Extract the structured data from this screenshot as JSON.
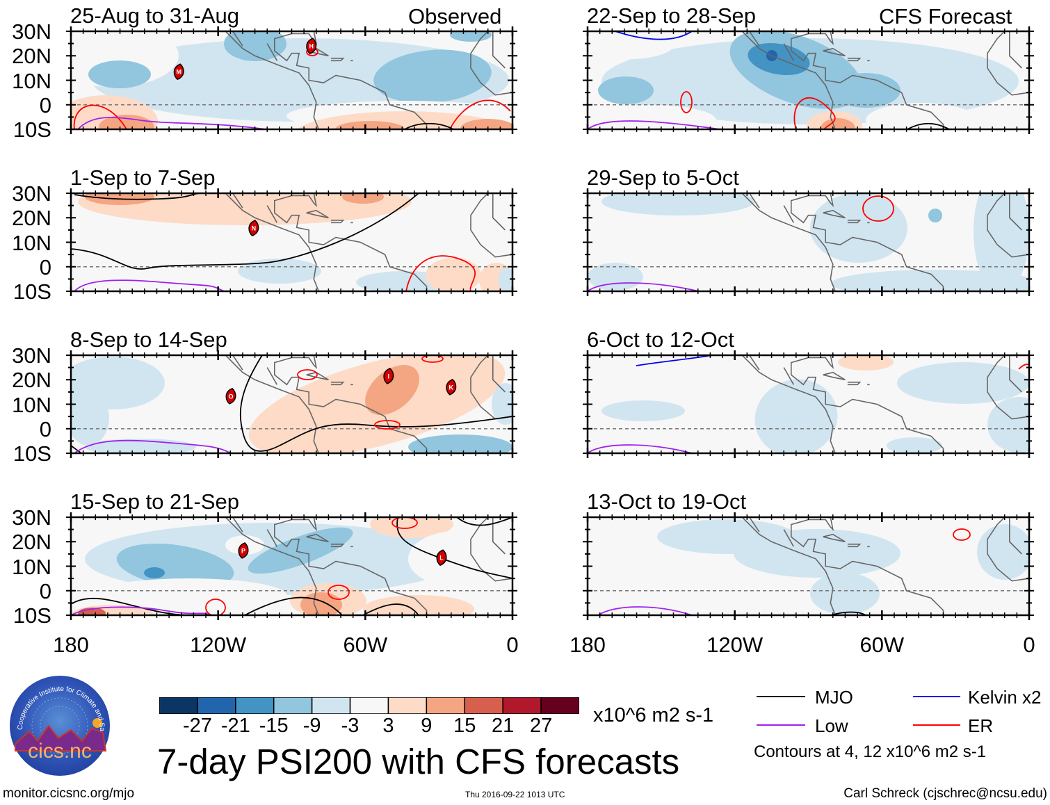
{
  "figure": {
    "title": "7-day PSI200 with CFS forecasts",
    "url": "monitor.cicsnc.org/mjo",
    "timestamp": "Thu 2016-09-22 1013 UTC",
    "author": "Carl Schreck (cjschrec@ncsu.edu)",
    "logo_text": "cics.nc",
    "logo_arc_text": "Cooperative Institute for Climate and Satellites"
  },
  "chart_data": {
    "type": "heatmap",
    "variable": "200-hPa streamfunction anomaly (PSI200), 7-day mean",
    "units": "x10^6 m2 s-1",
    "lat_range": [
      -10,
      30
    ],
    "lon_range": [
      -180,
      0
    ],
    "lat_ticks": [
      "30N",
      "20N",
      "10N",
      "0",
      "10S"
    ],
    "lon_ticks": [
      "180",
      "120W",
      "60W",
      "0"
    ],
    "colorbar": {
      "levels": [
        "-27",
        "-21",
        "-15",
        "-9",
        "-3",
        "3",
        "9",
        "15",
        "21",
        "27"
      ],
      "colors": [
        "#0b3565",
        "#2166ac",
        "#4393c3",
        "#92c5de",
        "#d1e5f0",
        "#f7f7f7",
        "#fddbc7",
        "#f4a582",
        "#d6604d",
        "#b2182b",
        "#67001f"
      ],
      "units_label": "x10^6 m2 s-1"
    },
    "legend": [
      {
        "label": "MJO",
        "color": "#000000"
      },
      {
        "label": "Kelvin x2",
        "color": "#0000ee"
      },
      {
        "label": "Low",
        "color": "#a020f0"
      },
      {
        "label": "ER",
        "color": "#ff0000"
      }
    ],
    "contour_note": "Contours at 4, 12 x10^6 m2 s-1",
    "column_labels": {
      "left": "Observed",
      "right": "CFS Forecast"
    },
    "panels": [
      {
        "title": "25-Aug to 31-Aug",
        "column": "left",
        "storms": [
          {
            "letter": "M",
            "lon": -136,
            "lat": 13.5
          },
          {
            "letter": "H",
            "lon": -82,
            "lat": 24
          }
        ]
      },
      {
        "title": "1-Sep to 7-Sep",
        "column": "left",
        "storms": [
          {
            "letter": "N",
            "lon": -105.5,
            "lat": 15.8
          }
        ]
      },
      {
        "title": "8-Sep to 14-Sep",
        "column": "left",
        "storms": [
          {
            "letter": "O",
            "lon": -114.8,
            "lat": 13.3
          },
          {
            "letter": "I",
            "lon": -50.5,
            "lat": 21.5
          },
          {
            "letter": "K",
            "lon": -25,
            "lat": 17
          }
        ]
      },
      {
        "title": "15-Sep to 21-Sep",
        "column": "left",
        "storms": [
          {
            "letter": "P",
            "lon": -109.7,
            "lat": 16.4
          },
          {
            "letter": "L",
            "lon": -28.9,
            "lat": 13.5
          }
        ]
      },
      {
        "title": "22-Sep to 28-Sep",
        "column": "right",
        "storms": []
      },
      {
        "title": "29-Sep to 5-Oct",
        "column": "right",
        "storms": []
      },
      {
        "title": "6-Oct to 12-Oct",
        "column": "right",
        "storms": []
      },
      {
        "title": "13-Oct to 19-Oct",
        "column": "right",
        "storms": []
      }
    ]
  }
}
